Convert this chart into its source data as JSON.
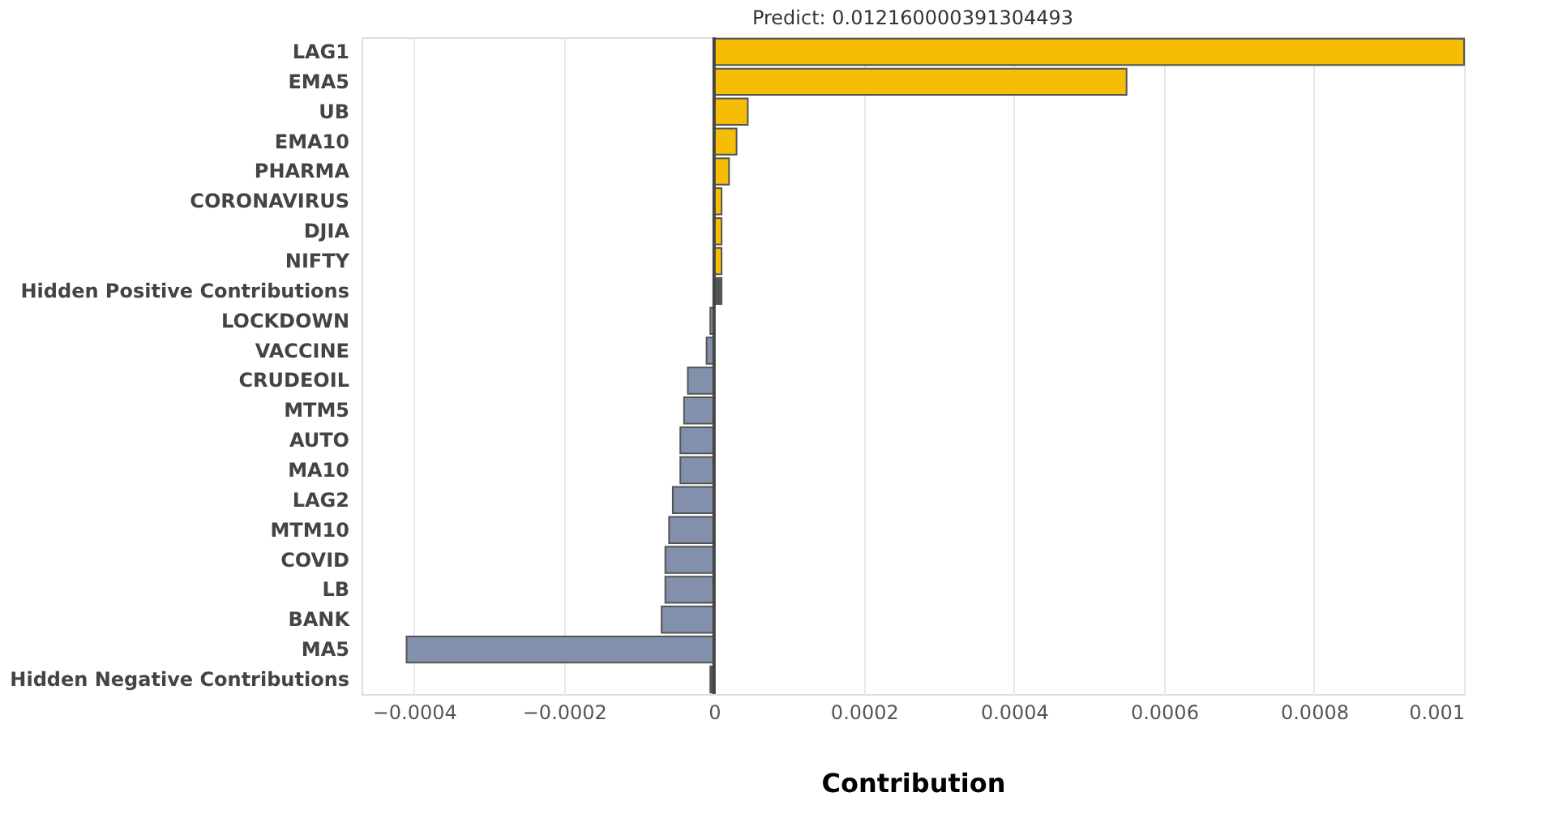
{
  "chart_data": {
    "type": "bar",
    "orientation": "horizontal",
    "title": "Predict: 0.012160000391304493",
    "xlabel": "Contribution",
    "categories": [
      "LAG1",
      "EMA5",
      "UB",
      "EMA10",
      "PHARMA",
      "CORONAVIRUS",
      "DJIA",
      "NIFTY",
      "Hidden Positive Contributions",
      "LOCKDOWN",
      "VACCINE",
      "CRUDEOIL",
      "MTM5",
      "AUTO",
      "MA10",
      "LAG2",
      "MTM10",
      "COVID",
      "LB",
      "BANK",
      "MA5",
      "Hidden Negative Contributions"
    ],
    "values": [
      0.001,
      0.00055,
      4.5e-05,
      3e-05,
      2e-05,
      1e-05,
      1e-05,
      1e-05,
      1e-05,
      -5e-06,
      -1e-05,
      -3.5e-05,
      -4e-05,
      -4.5e-05,
      -4.5e-05,
      -5.5e-05,
      -6e-05,
      -6.5e-05,
      -6.5e-05,
      -7e-05,
      -0.00041,
      -5e-06
    ],
    "colors": [
      "#f5be05",
      "#f5be05",
      "#f5be05",
      "#f5be05",
      "#f5be05",
      "#f5be05",
      "#f5be05",
      "#f5be05",
      "#555555",
      "#8290ab",
      "#8290ab",
      "#8290ab",
      "#8290ab",
      "#8290ab",
      "#8290ab",
      "#8290ab",
      "#8290ab",
      "#8290ab",
      "#8290ab",
      "#8290ab",
      "#8290ab",
      "#555555"
    ],
    "xlim": [
      -0.00047,
      0.001
    ],
    "xticks": [
      -0.0004,
      -0.0002,
      0,
      0.0002,
      0.0004,
      0.0006,
      0.0008,
      0.001
    ],
    "grid": "x",
    "ref_lines": [
      {
        "axis": "x",
        "value": 0,
        "color": "#444444"
      }
    ]
  }
}
